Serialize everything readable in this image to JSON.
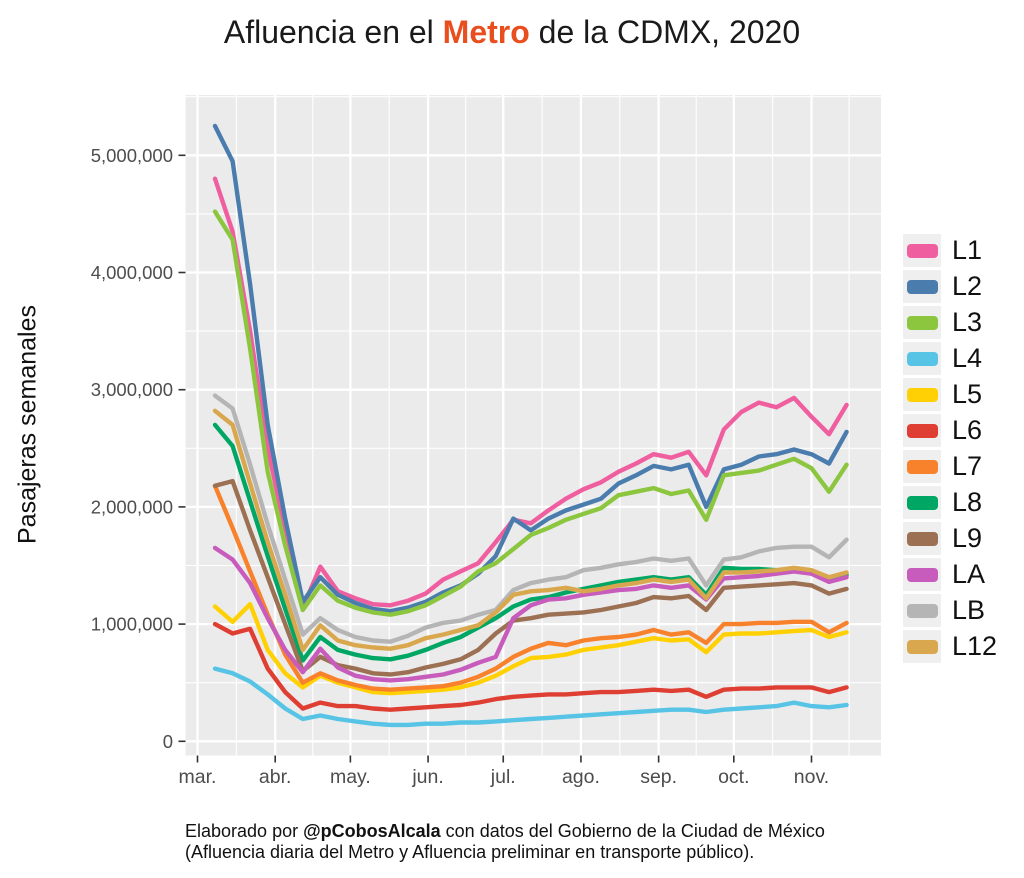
{
  "title": {
    "prefix": "Afluencia en el ",
    "highlight": "Metro",
    "suffix": " de la CDMX, 2020",
    "highlight_color": "#e94e1e"
  },
  "caption": {
    "line1_prefix": "Elaborado por ",
    "line1_bold": "@pCobosAlcala",
    "line1_suffix": " con datos del Gobierno de la Ciudad de México",
    "line2": "(Afluencia diaria del Metro y Afluencia preliminar en transporte público)."
  },
  "colors": {
    "panel_background": "#ebebeb",
    "gridline": "#ffffff",
    "tick_label": "#4d4d4d",
    "tick_mark": "#333333"
  },
  "chart_data": {
    "type": "line",
    "title": "Afluencia en el Metro de la CDMX, 2020",
    "xlabel": "",
    "ylabel": "Pasajeras semanales",
    "grid": "on",
    "legend_position": "right",
    "values_unit": "millions of weekly passengers",
    "x_unit": "week (Mar 2020 - Nov 2020, 37 weekly points)",
    "y_axis": {
      "range_millions": [
        0,
        5.5
      ],
      "ticks": [
        {
          "label": "0",
          "value_millions": 0
        },
        {
          "label": "1,000,000",
          "value_millions": 1
        },
        {
          "label": "2,000,000",
          "value_millions": 2
        },
        {
          "label": "3,000,000",
          "value_millions": 3
        },
        {
          "label": "4,000,000",
          "value_millions": 4
        },
        {
          "label": "5,000,000",
          "value_millions": 5
        }
      ]
    },
    "x_axis": {
      "months": [
        {
          "label": "mar.",
          "day": 0
        },
        {
          "label": "abr.",
          "day": 31
        },
        {
          "label": "may.",
          "day": 61
        },
        {
          "label": "jun.",
          "day": 92
        },
        {
          "label": "jul.",
          "day": 122
        },
        {
          "label": "ago.",
          "day": 153
        },
        {
          "label": "sep.",
          "day": 184
        },
        {
          "label": "oct.",
          "day": 214
        },
        {
          "label": "nov.",
          "day": 245
        }
      ],
      "minor_days": [
        15.5,
        46,
        76.5,
        107,
        137.5,
        168.5,
        199,
        229.5,
        260
      ],
      "first_week_day": 7,
      "week_step_days": 7
    },
    "series": [
      {
        "id": "L1",
        "name": "L1",
        "color": "#ef5fa0",
        "values_millions": [
          4.8,
          4.35,
          3.5,
          2.5,
          1.8,
          1.14,
          1.49,
          1.28,
          1.22,
          1.17,
          1.16,
          1.2,
          1.26,
          1.38,
          1.45,
          1.52,
          1.7,
          1.89,
          1.86,
          1.97,
          2.07,
          2.15,
          2.21,
          2.3,
          2.37,
          2.45,
          2.42,
          2.47,
          2.27,
          2.66,
          2.81,
          2.89,
          2.85,
          2.93,
          2.77,
          2.62,
          2.87
        ]
      },
      {
        "id": "L2",
        "name": "L2",
        "color": "#4a7cad",
        "values_millions": [
          5.25,
          4.95,
          3.9,
          2.7,
          1.9,
          1.19,
          1.4,
          1.25,
          1.18,
          1.13,
          1.11,
          1.14,
          1.19,
          1.27,
          1.33,
          1.43,
          1.58,
          1.9,
          1.8,
          1.9,
          1.97,
          2.02,
          2.07,
          2.2,
          2.27,
          2.35,
          2.32,
          2.36,
          2.0,
          2.32,
          2.36,
          2.43,
          2.45,
          2.49,
          2.45,
          2.37,
          2.64
        ]
      },
      {
        "id": "L3",
        "name": "L3",
        "color": "#8cc63f",
        "values_millions": [
          4.52,
          4.28,
          3.35,
          2.3,
          1.67,
          1.12,
          1.33,
          1.2,
          1.14,
          1.1,
          1.08,
          1.11,
          1.16,
          1.24,
          1.32,
          1.45,
          1.52,
          1.64,
          1.76,
          1.82,
          1.89,
          1.94,
          1.99,
          2.1,
          2.13,
          2.16,
          2.11,
          2.14,
          1.89,
          2.27,
          2.29,
          2.31,
          2.36,
          2.41,
          2.33,
          2.13,
          2.36
        ]
      },
      {
        "id": "L4",
        "name": "L4",
        "color": "#57c4e5",
        "values_millions": [
          0.62,
          0.58,
          0.51,
          0.4,
          0.28,
          0.19,
          0.22,
          0.19,
          0.17,
          0.15,
          0.14,
          0.14,
          0.15,
          0.15,
          0.16,
          0.16,
          0.17,
          0.18,
          0.19,
          0.2,
          0.21,
          0.22,
          0.23,
          0.24,
          0.25,
          0.26,
          0.27,
          0.27,
          0.25,
          0.27,
          0.28,
          0.29,
          0.3,
          0.33,
          0.3,
          0.29,
          0.31
        ]
      },
      {
        "id": "L5",
        "name": "L5",
        "color": "#ffd105",
        "values_millions": [
          1.15,
          1.02,
          1.17,
          0.78,
          0.58,
          0.46,
          0.56,
          0.5,
          0.46,
          0.42,
          0.41,
          0.42,
          0.43,
          0.44,
          0.46,
          0.5,
          0.56,
          0.64,
          0.71,
          0.72,
          0.74,
          0.78,
          0.8,
          0.82,
          0.85,
          0.88,
          0.86,
          0.87,
          0.76,
          0.91,
          0.92,
          0.92,
          0.93,
          0.94,
          0.95,
          0.89,
          0.93
        ]
      },
      {
        "id": "L6",
        "name": "L6",
        "color": "#df3e32",
        "values_millions": [
          1.0,
          0.92,
          0.96,
          0.62,
          0.42,
          0.28,
          0.33,
          0.3,
          0.3,
          0.28,
          0.27,
          0.28,
          0.29,
          0.3,
          0.31,
          0.33,
          0.36,
          0.38,
          0.39,
          0.4,
          0.4,
          0.41,
          0.42,
          0.42,
          0.43,
          0.44,
          0.43,
          0.44,
          0.38,
          0.44,
          0.45,
          0.45,
          0.46,
          0.46,
          0.46,
          0.42,
          0.46
        ]
      },
      {
        "id": "L7",
        "name": "L7",
        "color": "#f8822c",
        "values_millions": [
          2.18,
          1.82,
          1.45,
          1.08,
          0.74,
          0.5,
          0.58,
          0.52,
          0.48,
          0.45,
          0.44,
          0.45,
          0.46,
          0.47,
          0.5,
          0.55,
          0.62,
          0.72,
          0.79,
          0.84,
          0.82,
          0.86,
          0.88,
          0.89,
          0.91,
          0.95,
          0.91,
          0.93,
          0.84,
          1.0,
          1.0,
          1.01,
          1.01,
          1.02,
          1.02,
          0.93,
          1.01
        ]
      },
      {
        "id": "L8",
        "name": "L8",
        "color": "#00a664",
        "values_millions": [
          2.7,
          2.52,
          2.05,
          1.58,
          1.13,
          0.69,
          0.89,
          0.78,
          0.74,
          0.71,
          0.7,
          0.73,
          0.78,
          0.84,
          0.89,
          0.97,
          1.05,
          1.15,
          1.21,
          1.23,
          1.27,
          1.3,
          1.33,
          1.36,
          1.38,
          1.4,
          1.38,
          1.4,
          1.25,
          1.48,
          1.47,
          1.47,
          1.46,
          1.46,
          1.45,
          1.38,
          1.42
        ]
      },
      {
        "id": "L9",
        "name": "L9",
        "color": "#9c7053",
        "values_millions": [
          2.18,
          2.22,
          1.8,
          1.4,
          1.0,
          0.6,
          0.72,
          0.65,
          0.62,
          0.58,
          0.57,
          0.59,
          0.63,
          0.66,
          0.7,
          0.78,
          0.92,
          1.03,
          1.05,
          1.08,
          1.09,
          1.1,
          1.12,
          1.15,
          1.18,
          1.23,
          1.22,
          1.24,
          1.12,
          1.31,
          1.32,
          1.33,
          1.34,
          1.35,
          1.33,
          1.26,
          1.3
        ]
      },
      {
        "id": "LA",
        "name": "LA",
        "color": "#c75cbc",
        "values_millions": [
          1.65,
          1.55,
          1.35,
          1.05,
          0.78,
          0.59,
          0.79,
          0.63,
          0.56,
          0.53,
          0.52,
          0.53,
          0.55,
          0.57,
          0.61,
          0.67,
          0.72,
          1.05,
          1.16,
          1.21,
          1.22,
          1.25,
          1.27,
          1.29,
          1.3,
          1.33,
          1.31,
          1.33,
          1.21,
          1.39,
          1.4,
          1.41,
          1.43,
          1.45,
          1.43,
          1.36,
          1.4
        ]
      },
      {
        "id": "LB",
        "name": "LB",
        "color": "#b5b5b5",
        "values_millions": [
          2.95,
          2.84,
          2.36,
          1.85,
          1.38,
          0.91,
          1.05,
          0.95,
          0.89,
          0.86,
          0.85,
          0.9,
          0.97,
          1.01,
          1.03,
          1.08,
          1.12,
          1.29,
          1.35,
          1.38,
          1.4,
          1.46,
          1.48,
          1.51,
          1.53,
          1.56,
          1.54,
          1.56,
          1.33,
          1.55,
          1.57,
          1.62,
          1.65,
          1.66,
          1.66,
          1.57,
          1.72
        ]
      },
      {
        "id": "L12",
        "name": "L12",
        "color": "#d9a84e",
        "values_millions": [
          2.82,
          2.7,
          2.2,
          1.7,
          1.25,
          0.78,
          0.99,
          0.86,
          0.82,
          0.8,
          0.79,
          0.82,
          0.88,
          0.91,
          0.95,
          0.99,
          1.1,
          1.25,
          1.28,
          1.29,
          1.31,
          1.28,
          1.3,
          1.33,
          1.35,
          1.38,
          1.36,
          1.38,
          1.22,
          1.44,
          1.44,
          1.45,
          1.46,
          1.48,
          1.46,
          1.4,
          1.44
        ]
      }
    ]
  }
}
